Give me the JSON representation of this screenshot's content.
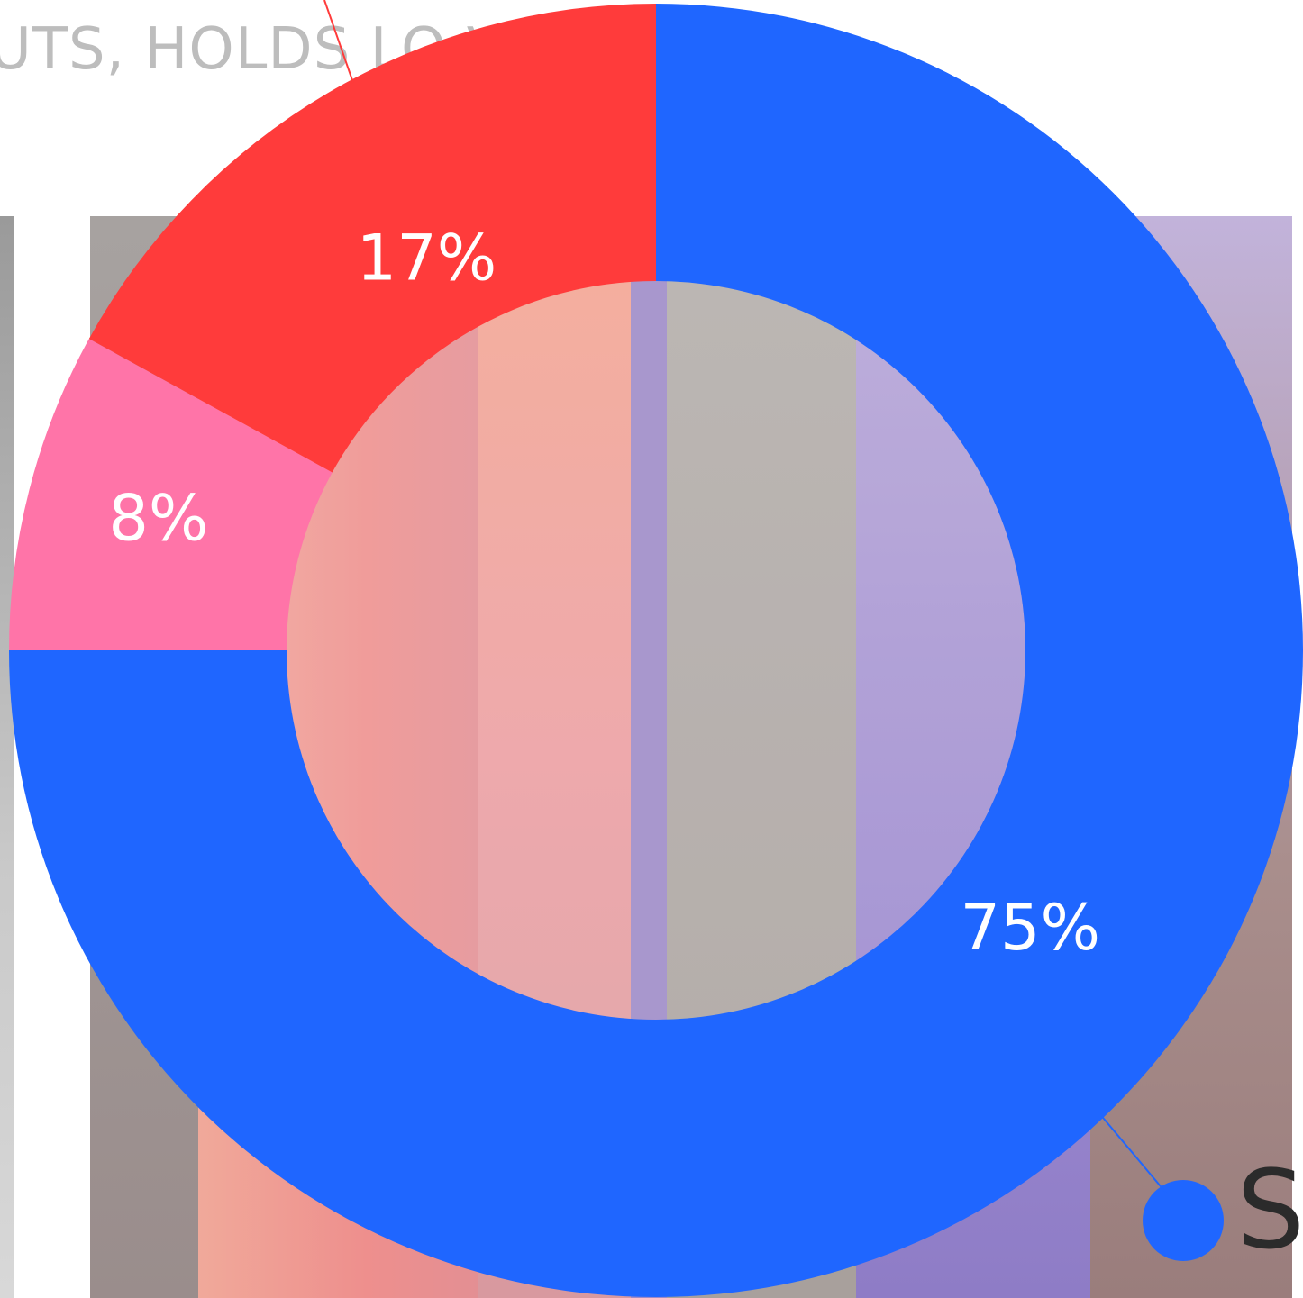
{
  "header": {
    "text": "UTS, HOLDS LO               VICE DESK-?"
  },
  "chart_data": {
    "type": "pie",
    "donut": true,
    "start_angle_deg": 90,
    "direction": "clockwise",
    "slices": [
      {
        "label": "75%",
        "value": 75,
        "color": "#1f66ff"
      },
      {
        "label": "8%",
        "value": 8,
        "color": "#ff74a8"
      },
      {
        "label": "17%",
        "value": 17,
        "color": "#ff3b3b"
      }
    ]
  },
  "legend": {
    "marker_color": "#1f66ff",
    "text": "S"
  }
}
